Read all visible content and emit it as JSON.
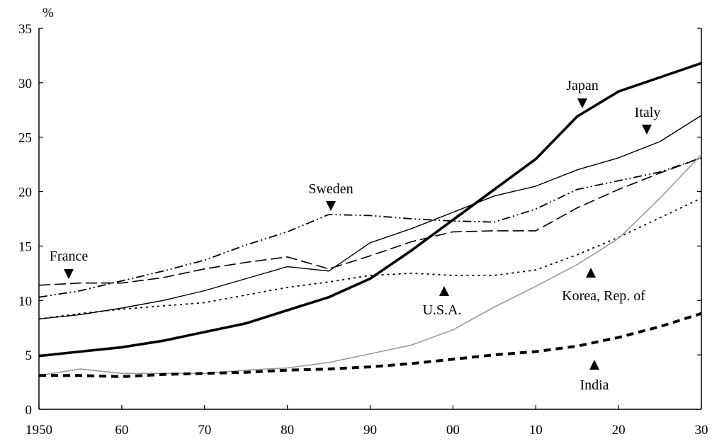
{
  "chart_data": {
    "type": "line",
    "ylabel": "%",
    "xlim": [
      1950,
      2030
    ],
    "ylim": [
      0,
      35
    ],
    "yticks": [
      0,
      5,
      10,
      15,
      20,
      25,
      30,
      35
    ],
    "xticks": [
      {
        "value": 1950,
        "label": "1950"
      },
      {
        "value": 1960,
        "label": "60"
      },
      {
        "value": 1970,
        "label": "70"
      },
      {
        "value": 1980,
        "label": "80"
      },
      {
        "value": 1990,
        "label": "90"
      },
      {
        "value": 2000,
        "label": "00"
      },
      {
        "value": 2010,
        "label": "10"
      },
      {
        "value": 2020,
        "label": "20"
      },
      {
        "value": 2030,
        "label": "30"
      }
    ],
    "grid": false,
    "legend": "none",
    "series": [
      {
        "name": "Japan",
        "style": "thick-solid",
        "color": "#000000",
        "x": [
          1950,
          1955,
          1960,
          1965,
          1970,
          1975,
          1980,
          1985,
          1990,
          1995,
          2000,
          2005,
          2010,
          2015,
          2020,
          2025,
          2030
        ],
        "y": [
          4.9,
          5.3,
          5.7,
          6.3,
          7.1,
          7.9,
          9.1,
          10.3,
          12.0,
          14.6,
          17.4,
          20.2,
          23.0,
          26.9,
          29.2,
          30.5,
          31.8
        ]
      },
      {
        "name": "Italy",
        "style": "thin-solid",
        "color": "#000000",
        "x": [
          1950,
          1955,
          1960,
          1965,
          1970,
          1975,
          1980,
          1985,
          1990,
          1995,
          2000,
          2005,
          2010,
          2015,
          2020,
          2025,
          2030
        ],
        "y": [
          8.3,
          8.7,
          9.3,
          10.0,
          10.9,
          12.0,
          13.1,
          12.7,
          15.3,
          16.6,
          18.1,
          19.6,
          20.5,
          22.0,
          23.1,
          24.6,
          27.0
        ]
      },
      {
        "name": "Sweden",
        "style": "dash-dot-dot",
        "color": "#000000",
        "x": [
          1950,
          1955,
          1960,
          1965,
          1970,
          1975,
          1980,
          1985,
          1990,
          1995,
          2000,
          2005,
          2010,
          2015,
          2020,
          2025,
          2030
        ],
        "y": [
          10.3,
          10.9,
          11.8,
          12.7,
          13.7,
          15.1,
          16.3,
          17.9,
          17.8,
          17.5,
          17.3,
          17.2,
          18.4,
          20.2,
          21.0,
          21.8,
          23.1
        ]
      },
      {
        "name": "France",
        "style": "long-dash",
        "color": "#000000",
        "x": [
          1950,
          1955,
          1960,
          1965,
          1970,
          1975,
          1980,
          1985,
          1990,
          1995,
          2000,
          2005,
          2010,
          2015,
          2020,
          2025,
          2030
        ],
        "y": [
          11.4,
          11.6,
          11.6,
          12.1,
          12.9,
          13.5,
          14.0,
          12.9,
          14.1,
          15.4,
          16.3,
          16.4,
          16.4,
          18.5,
          20.2,
          21.7,
          23.1
        ]
      },
      {
        "name": "U.S.A.",
        "style": "dotted",
        "color": "#000000",
        "x": [
          1950,
          1955,
          1960,
          1965,
          1970,
          1975,
          1980,
          1985,
          1990,
          1995,
          2000,
          2005,
          2010,
          2015,
          2020,
          2025,
          2030
        ],
        "y": [
          8.3,
          8.8,
          9.2,
          9.5,
          9.8,
          10.5,
          11.2,
          11.7,
          12.3,
          12.5,
          12.3,
          12.3,
          12.8,
          14.2,
          15.8,
          17.6,
          19.4
        ]
      },
      {
        "name": "Korea, Rep. of",
        "style": "thin-solid-gray",
        "color": "#9a9a9a",
        "x": [
          1950,
          1955,
          1960,
          1965,
          1970,
          1975,
          1980,
          1985,
          1990,
          1995,
          2000,
          2005,
          2010,
          2015,
          2020,
          2025,
          2030
        ],
        "y": [
          3.1,
          3.7,
          3.3,
          3.3,
          3.3,
          3.6,
          3.8,
          4.3,
          5.1,
          5.9,
          7.3,
          9.4,
          11.3,
          13.3,
          15.7,
          19.4,
          23.4
        ]
      },
      {
        "name": "India",
        "style": "thick-dash",
        "color": "#000000",
        "x": [
          1950,
          1955,
          1960,
          1965,
          1970,
          1975,
          1980,
          1985,
          1990,
          1995,
          2000,
          2005,
          2010,
          2015,
          2020,
          2025,
          2030
        ],
        "y": [
          3.1,
          3.1,
          3.0,
          3.2,
          3.3,
          3.4,
          3.6,
          3.7,
          3.9,
          4.2,
          4.6,
          5.0,
          5.3,
          5.8,
          6.6,
          7.6,
          8.8
        ]
      }
    ],
    "annotations": [
      {
        "text": "Japan",
        "series": "Japan",
        "marker": "down"
      },
      {
        "text": "Italy",
        "series": "Italy",
        "marker": "down"
      },
      {
        "text": "Sweden",
        "series": "Sweden",
        "marker": "down"
      },
      {
        "text": "France",
        "series": "France",
        "marker": "down"
      },
      {
        "text": "U.S.A.",
        "series": "U.S.A.",
        "marker": "up"
      },
      {
        "text": "Korea, Rep. of",
        "series": "Korea, Rep. of",
        "marker": "up"
      },
      {
        "text": "India",
        "series": "India",
        "marker": "up"
      }
    ]
  }
}
